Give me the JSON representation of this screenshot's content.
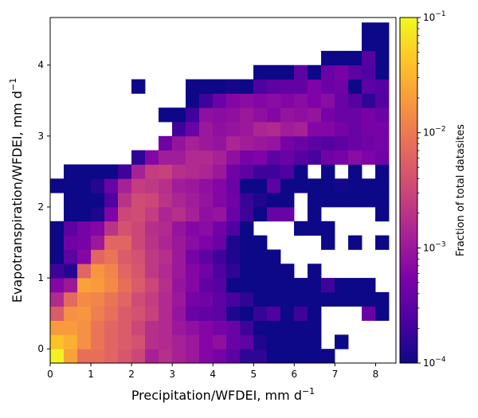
{
  "chart_data": {
    "type": "heatmap",
    "title": "",
    "xlabel": "Precipitation/WFDEI,  mm d",
    "xlabel_superscript": "−1",
    "ylabel": "Evapotranspiration/WFDEI,  mm d",
    "ylabel_superscript": "−1",
    "xlim": [
      0,
      8.5
    ],
    "ylim": [
      -0.2,
      4.67
    ],
    "xticks": [
      0,
      1,
      2,
      3,
      4,
      5,
      6,
      7,
      8
    ],
    "yticks": [
      0,
      1,
      2,
      3,
      4
    ],
    "bin_width_x": 0.333,
    "bin_height_y": 0.2,
    "x_bin_start": 0,
    "y_bin_start": -0.2,
    "colorbar": {
      "label": "Fraction of total datasites",
      "scale": "log",
      "vmin": 0.0001,
      "vmax": 0.1,
      "colormap": "plasma",
      "tick_values": [
        0.0001,
        0.001,
        0.01,
        0.1
      ],
      "tick_base": "10",
      "tick_exponents": [
        "−4",
        "−3",
        "−2",
        "−1"
      ]
    },
    "grid": false,
    "log10_fraction_rows_bottom_to_top": [
      [
        -1.05,
        -1.65,
        -2.1,
        -2.1,
        -2.2,
        -2.35,
        -2.5,
        -2.9,
        -2.75,
        -2.9,
        -3.0,
        -3.2,
        -3.3,
        -3.5,
        -3.8,
        -3.8,
        -4.0,
        -4.0,
        -4.0,
        -4.0,
        -4.0,
        null,
        null,
        null,
        null
      ],
      [
        -1.4,
        -1.55,
        -1.8,
        -2.05,
        -2.2,
        -2.3,
        -2.4,
        -2.75,
        -2.8,
        -2.9,
        -3.0,
        -3.2,
        -3.1,
        -3.4,
        -3.5,
        -3.9,
        -4.0,
        -4.0,
        -4.0,
        -4.0,
        null,
        -4.0,
        null,
        null,
        null
      ],
      [
        -1.7,
        -1.7,
        -1.8,
        -2.05,
        -2.2,
        -2.3,
        -2.5,
        -2.75,
        -2.8,
        -3.0,
        -3.1,
        -3.2,
        -3.3,
        -3.4,
        -3.7,
        -4.0,
        -4.0,
        -4.0,
        -4.0,
        -4.0,
        null,
        null,
        null,
        null,
        null
      ],
      [
        -2.3,
        -1.8,
        -1.75,
        -1.95,
        -2.1,
        -2.3,
        -2.4,
        -2.55,
        -2.8,
        -3.05,
        -3.4,
        -3.45,
        -3.5,
        -3.9,
        -4.0,
        -3.75,
        -3.6,
        -4.0,
        -3.7,
        -4.0,
        null,
        null,
        null,
        -3.4,
        -4.0
      ],
      [
        -2.8,
        -2.15,
        -1.85,
        -1.9,
        -2.05,
        -2.2,
        -2.45,
        -2.6,
        -2.8,
        -3.0,
        -3.3,
        -3.35,
        -3.5,
        -3.65,
        -3.8,
        -4.0,
        -4.0,
        -4.0,
        -4.0,
        -4.0,
        -4.0,
        -4.0,
        -4.0,
        -4.0,
        -4.0
      ],
      [
        -3.2,
        -3.0,
        -1.65,
        -1.7,
        -1.85,
        -2.1,
        -2.3,
        -2.5,
        -2.75,
        -3.05,
        -3.2,
        -3.45,
        -3.55,
        -4.0,
        -4.0,
        -4.0,
        -4.0,
        -4.0,
        -4.0,
        -4.0,
        -3.7,
        -4.0,
        -4.0,
        -4.0,
        null
      ],
      [
        -3.7,
        -3.85,
        -2.2,
        -1.75,
        -1.9,
        -2.2,
        -2.35,
        -2.65,
        -2.8,
        -3.0,
        -3.2,
        -3.35,
        -3.6,
        -3.8,
        -4.0,
        -4.0,
        -4.0,
        -4.0,
        null,
        -4.0,
        null,
        null,
        null,
        null,
        null
      ],
      [
        -4.0,
        -3.5,
        -3.2,
        -2.2,
        -2.05,
        -2.3,
        -2.4,
        -2.65,
        -2.75,
        -3.0,
        -3.3,
        -3.5,
        -3.7,
        -3.9,
        -4.0,
        -4.0,
        -4.0,
        null,
        null,
        null,
        null,
        null,
        null,
        null,
        null
      ],
      [
        -4.0,
        -3.35,
        -3.3,
        -3.0,
        -2.2,
        -2.2,
        -2.5,
        -2.7,
        -2.85,
        -3.0,
        -3.15,
        -3.25,
        -3.4,
        -3.9,
        -4.0,
        -4.0,
        null,
        null,
        null,
        null,
        -4.0,
        null,
        -4.0,
        null,
        -4.0
      ],
      [
        -4.0,
        -3.5,
        -3.3,
        -3.2,
        -2.7,
        -2.4,
        -2.5,
        -2.75,
        -2.8,
        -3.05,
        -3.2,
        -3.15,
        -3.35,
        -3.6,
        -4.0,
        null,
        null,
        null,
        -4.0,
        -4.0,
        -4.0,
        null,
        null,
        null,
        null
      ],
      [
        null,
        -4.0,
        -4.0,
        -3.9,
        -3.25,
        -2.5,
        -2.45,
        -2.6,
        -2.85,
        -2.75,
        -2.9,
        -3.1,
        -3.05,
        -3.4,
        -3.7,
        -4.0,
        -3.4,
        -3.4,
        null,
        -4.0,
        null,
        null,
        null,
        null,
        -4.0
      ],
      [
        null,
        -4.0,
        -4.0,
        -4.0,
        -3.6,
        -2.7,
        -2.45,
        -2.5,
        -2.7,
        -2.85,
        -2.95,
        -3.05,
        -3.2,
        -3.35,
        -3.75,
        -3.9,
        -4.0,
        -4.0,
        null,
        -4.0,
        -4.0,
        -4.0,
        -4.0,
        -4.0,
        -4.0
      ],
      [
        -4.0,
        -4.0,
        -4.0,
        -3.85,
        -3.4,
        -2.9,
        -2.6,
        -2.65,
        -2.75,
        -2.95,
        -3.0,
        -3.1,
        -3.2,
        -3.4,
        -4.0,
        -4.0,
        -3.5,
        -4.0,
        -4.0,
        -4.0,
        -4.0,
        -3.95,
        -4.0,
        -4.0,
        -4.0
      ],
      [
        null,
        -4.0,
        -4.0,
        -4.0,
        -4.0,
        -3.7,
        -2.9,
        -2.6,
        -2.55,
        -2.75,
        -2.8,
        -2.85,
        -3.0,
        -3.35,
        -3.5,
        -3.7,
        -3.7,
        -3.6,
        -4.0,
        null,
        -4.0,
        null,
        -4.0,
        null,
        -4.0
      ],
      [
        null,
        null,
        null,
        null,
        null,
        null,
        -3.8,
        -3.2,
        -2.95,
        -2.95,
        -2.8,
        -2.8,
        -2.9,
        -3.1,
        -3.3,
        -3.25,
        -3.5,
        -3.4,
        -3.55,
        -3.65,
        -3.35,
        -3.3,
        -3.15,
        -3.25,
        -3.35
      ],
      [
        null,
        null,
        null,
        null,
        null,
        null,
        null,
        null,
        -3.35,
        -3.05,
        -2.9,
        -3.0,
        -3.05,
        -2.85,
        -2.95,
        -3.0,
        -3.05,
        -3.3,
        -3.4,
        -3.5,
        -3.55,
        -3.5,
        -3.4,
        -3.35,
        -3.3
      ],
      [
        null,
        null,
        null,
        null,
        null,
        null,
        null,
        null,
        null,
        -3.7,
        -3.4,
        -3.0,
        -3.1,
        -3.05,
        -3.0,
        -2.85,
        -2.8,
        -2.95,
        -2.9,
        -3.2,
        -3.2,
        -3.3,
        -3.4,
        -3.3,
        -3.3
      ],
      [
        null,
        null,
        null,
        null,
        null,
        null,
        null,
        null,
        -4.0,
        -4.0,
        -3.7,
        -3.1,
        -3.15,
        -3.1,
        -3.0,
        -3.1,
        -3.2,
        -3.05,
        -3.1,
        -3.05,
        -3.3,
        -3.4,
        -3.4,
        -3.3,
        -3.4
      ],
      [
        null,
        null,
        null,
        null,
        null,
        null,
        null,
        null,
        null,
        null,
        -4.0,
        -3.7,
        -3.4,
        -3.2,
        -3.15,
        -3.2,
        -3.15,
        -3.2,
        -3.15,
        -3.25,
        -3.15,
        -3.4,
        -3.55,
        -3.8,
        -3.55
      ],
      [
        null,
        null,
        null,
        null,
        null,
        null,
        -4.0,
        null,
        null,
        null,
        -4.0,
        -4.0,
        -4.0,
        -3.95,
        -4.0,
        -3.6,
        -3.5,
        -3.45,
        -3.45,
        -3.25,
        -3.4,
        -3.35,
        -4.0,
        -3.5,
        -3.55
      ],
      [
        null,
        null,
        null,
        null,
        null,
        null,
        null,
        null,
        null,
        null,
        null,
        null,
        null,
        null,
        null,
        -4.0,
        -4.0,
        -4.0,
        -3.5,
        -4.0,
        -3.4,
        -3.3,
        -3.5,
        -3.6,
        -4.0
      ],
      [
        null,
        null,
        null,
        null,
        null,
        null,
        null,
        null,
        null,
        null,
        null,
        null,
        null,
        null,
        null,
        null,
        null,
        null,
        null,
        null,
        -4.0,
        -4.0,
        -4.0,
        -3.55,
        -4.0
      ],
      [
        null,
        null,
        null,
        null,
        null,
        null,
        null,
        null,
        null,
        null,
        null,
        null,
        null,
        null,
        null,
        null,
        null,
        null,
        null,
        null,
        null,
        null,
        null,
        -4.0,
        -4.0
      ],
      [
        null,
        null,
        null,
        null,
        null,
        null,
        null,
        null,
        null,
        null,
        null,
        null,
        null,
        null,
        null,
        null,
        null,
        null,
        null,
        null,
        null,
        null,
        null,
        -4.0,
        -4.0
      ]
    ]
  }
}
